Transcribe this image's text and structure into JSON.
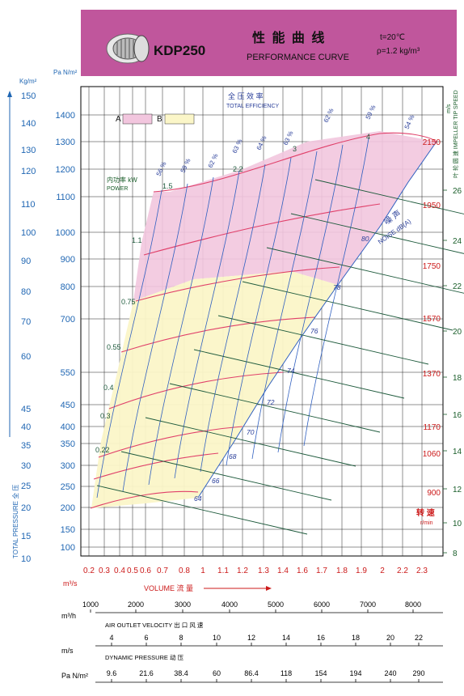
{
  "header": {
    "model": "KDP250",
    "title_cn": "性 能 曲 线",
    "title_en": "PERFORMANCE CURVE",
    "temp": "t=20℃",
    "density": "ρ=1.2 kg/m³",
    "bg_color": "#c0569c"
  },
  "legend": {
    "a_label": "A",
    "b_label": "B",
    "a_color": "#f2c6de",
    "b_color": "#fbf6c8",
    "total_eff_cn": "全 压 效 率",
    "total_eff_en": "TOTAL EFFICIENCY",
    "power_cn": "内功率 kW",
    "power_en": "POWER",
    "noise_cn": "噪 声",
    "noise_en": "NOISE dB(A)",
    "speed_cn": "转 速",
    "speed_unit": "r/min"
  },
  "axes": {
    "left_unit_kg": "Kg/m²",
    "left_unit_pa": "Pa N/m²",
    "left_title": "TOTAL PRESSURE 全 压",
    "right_unit": "m/s",
    "right_title": "叶 轮 圆 速 IMPELLER TIP SPEED",
    "x_unit": "m³/s",
    "x_title": "VOLUME 流 量"
  },
  "chart_data": {
    "type": "line",
    "y_kg_ticks": [
      "150",
      "140",
      "130",
      "120",
      "110",
      "100",
      "90",
      "80",
      "70",
      "60",
      "45",
      "40",
      "35",
      "30",
      "25",
      "20",
      "15",
      "10"
    ],
    "y_pa_ticks": [
      "1400",
      "1300",
      "1200",
      "1100",
      "1000",
      "900",
      "800",
      "700",
      "550",
      "450",
      "400",
      "350",
      "300",
      "250",
      "200",
      "150",
      "100"
    ],
    "x_ticks": [
      "0.2",
      "0.3",
      "0.4",
      "0.5",
      "0.6",
      "0.7",
      "0.8",
      "1",
      "1.1",
      "1.2",
      "1.3",
      "1.4",
      "1.6",
      "1.7",
      "1.8",
      "1.9",
      "2",
      "2.2",
      "2.3"
    ],
    "tip_speed_ticks": [
      "26",
      "24",
      "22",
      "20",
      "18",
      "16",
      "14",
      "12",
      "10",
      "8"
    ],
    "speed_ticks": [
      "2150",
      "1950",
      "1750",
      "1570",
      "1370",
      "1170",
      "1060",
      "900"
    ],
    "efficiency_labels": [
      "56 %",
      "59 %",
      "62 %",
      "63 %",
      "64 %",
      "63 %",
      "62 %",
      "59 %",
      "54 %"
    ],
    "power_labels": [
      "4",
      "3",
      "2.2",
      "1.5",
      "1.1",
      "0.75",
      "0.55",
      "0.4",
      "0.3",
      "0.22"
    ],
    "noise_labels": [
      "80",
      "78",
      "76",
      "74",
      "72",
      "70",
      "68",
      "66",
      "64"
    ],
    "series": [
      {
        "name": "2150",
        "x": [
          0.6,
          1.0,
          1.4,
          1.8,
          2.1,
          2.3
        ],
        "y": [
          1100,
          1180,
          1240,
          1290,
          1310,
          1300
        ]
      },
      {
        "name": "1950",
        "x": [
          0.55,
          0.9,
          1.3,
          1.6,
          1.9
        ],
        "y": [
          900,
          950,
          1000,
          1020,
          1030
        ]
      },
      {
        "name": "1750",
        "x": [
          0.5,
          0.8,
          1.1,
          1.4,
          1.7
        ],
        "y": [
          720,
          770,
          810,
          830,
          840
        ]
      },
      {
        "name": "1570",
        "x": [
          0.45,
          0.7,
          1.0,
          1.3,
          1.5
        ],
        "y": [
          600,
          640,
          670,
          690,
          690
        ]
      },
      {
        "name": "1370",
        "x": [
          0.4,
          0.6,
          0.9,
          1.1,
          1.3
        ],
        "y": [
          450,
          490,
          510,
          520,
          520
        ]
      },
      {
        "name": "1170",
        "x": [
          0.35,
          0.5,
          0.75,
          1.0,
          1.2
        ],
        "y": [
          330,
          360,
          380,
          390,
          390
        ]
      },
      {
        "name": "1060",
        "x": [
          0.3,
          0.45,
          0.7,
          0.9,
          1.1
        ],
        "y": [
          270,
          300,
          315,
          320,
          320
        ]
      },
      {
        "name": "900",
        "x": [
          0.25,
          0.4,
          0.6,
          0.8,
          1.0
        ],
        "y": [
          195,
          215,
          225,
          230,
          230
        ]
      }
    ]
  },
  "bottom_scales": {
    "m3h_label": "m³/h",
    "m3h_ticks": [
      "1000",
      "2000",
      "3000",
      "4000",
      "5000",
      "6000",
      "7000",
      "8000"
    ],
    "outlet_title": "AIR OUTLET VELOCITY 出 口 风 速",
    "ms_label": "m/s",
    "ms_ticks": [
      "4",
      "6",
      "8",
      "10",
      "12",
      "14",
      "16",
      "18",
      "20",
      "22"
    ],
    "dyn_title": "DYNAMIC PRESSURE   动 压",
    "pa_label": "Pa N/m²",
    "pa_ticks": [
      "9.6",
      "21.6",
      "38.4",
      "60",
      "86.4",
      "118",
      "154",
      "194",
      "240",
      "290"
    ]
  }
}
